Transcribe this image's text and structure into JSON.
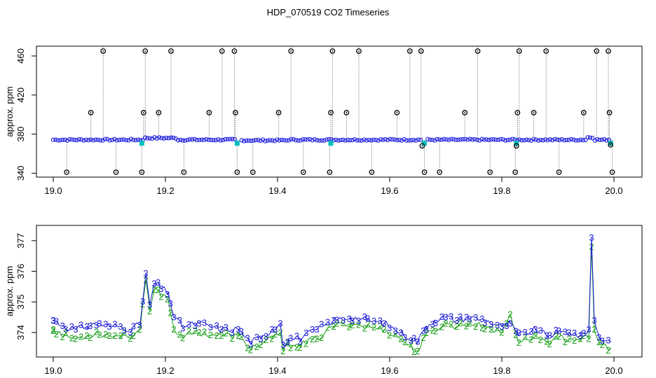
{
  "title": "HDP_070519  CO2 Timeseries",
  "chart_data": [
    {
      "type": "scatter",
      "ylabel": "approx. ppm",
      "xlabel": "",
      "xlim": [
        18.97,
        20.05
      ],
      "ylim": [
        336,
        470
      ],
      "x_ticks": [
        "19.0",
        "19.2",
        "19.4",
        "19.6",
        "19.8",
        "20.0"
      ],
      "y_ticks": [
        "340",
        "380",
        "420",
        "460"
      ],
      "baseline": 374.2,
      "series": [
        {
          "color": "#1010e0",
          "marker": "circle-dot",
          "note_baseline": "dense line near 374 ppm"
        },
        {
          "color": "#00bfbf",
          "marker": "square"
        },
        {
          "color": "#000000",
          "marker": "circle",
          "spikes": [
            {
              "x": 19.024,
              "y": 341
            },
            {
              "x": 19.067,
              "y": 402
            },
            {
              "x": 19.089,
              "y": 465
            },
            {
              "x": 19.112,
              "y": 341
            },
            {
              "x": 19.158,
              "y": 341
            },
            {
              "x": 19.161,
              "y": 402
            },
            {
              "x": 19.164,
              "y": 465
            },
            {
              "x": 19.188,
              "y": 402
            },
            {
              "x": 19.21,
              "y": 465
            },
            {
              "x": 19.233,
              "y": 341
            },
            {
              "x": 19.278,
              "y": 402
            },
            {
              "x": 19.301,
              "y": 465
            },
            {
              "x": 19.323,
              "y": 465
            },
            {
              "x": 19.325,
              "y": 402
            },
            {
              "x": 19.328,
              "y": 341
            },
            {
              "x": 19.356,
              "y": 341
            },
            {
              "x": 19.402,
              "y": 402
            },
            {
              "x": 19.424,
              "y": 465
            },
            {
              "x": 19.446,
              "y": 341
            },
            {
              "x": 19.493,
              "y": 341
            },
            {
              "x": 19.495,
              "y": 402
            },
            {
              "x": 19.498,
              "y": 465
            },
            {
              "x": 19.523,
              "y": 402
            },
            {
              "x": 19.545,
              "y": 465
            },
            {
              "x": 19.568,
              "y": 341
            },
            {
              "x": 19.613,
              "y": 402
            },
            {
              "x": 19.636,
              "y": 465
            },
            {
              "x": 19.656,
              "y": 465
            },
            {
              "x": 19.658,
              "y": 368
            },
            {
              "x": 19.662,
              "y": 341
            },
            {
              "x": 19.689,
              "y": 341
            },
            {
              "x": 19.734,
              "y": 402
            },
            {
              "x": 19.757,
              "y": 465
            },
            {
              "x": 19.779,
              "y": 341
            },
            {
              "x": 19.824,
              "y": 341
            },
            {
              "x": 19.826,
              "y": 368
            },
            {
              "x": 19.828,
              "y": 402
            },
            {
              "x": 19.831,
              "y": 465
            },
            {
              "x": 19.857,
              "y": 402
            },
            {
              "x": 19.879,
              "y": 465
            },
            {
              "x": 19.902,
              "y": 341
            },
            {
              "x": 19.946,
              "y": 402
            },
            {
              "x": 19.969,
              "y": 465
            },
            {
              "x": 19.99,
              "y": 465
            },
            {
              "x": 19.992,
              "y": 402
            },
            {
              "x": 19.994,
              "y": 369
            },
            {
              "x": 19.997,
              "y": 341
            }
          ]
        }
      ]
    },
    {
      "type": "line",
      "ylabel": "approx. ppm",
      "xlabel": "",
      "xlim": [
        18.97,
        20.05
      ],
      "ylim": [
        373.2,
        377.5
      ],
      "x_ticks": [
        "19.0",
        "19.2",
        "19.4",
        "19.6",
        "19.8",
        "20.0"
      ],
      "y_ticks": [
        "374",
        "375",
        "376",
        "377"
      ],
      "series": [
        {
          "marker": "3",
          "color": "#1a1ad6",
          "x": [
            19.0,
            19.02,
            19.04,
            19.06,
            19.08,
            19.1,
            19.12,
            19.14,
            19.155,
            19.165,
            19.172,
            19.18,
            19.19,
            19.205,
            19.215,
            19.23,
            19.26,
            19.3,
            19.33,
            19.35,
            19.37,
            19.39,
            19.405,
            19.41,
            19.42,
            19.44,
            19.47,
            19.5,
            19.53,
            19.56,
            19.59,
            19.62,
            19.64,
            19.65,
            19.665,
            19.68,
            19.7,
            19.72,
            19.74,
            19.77,
            19.8,
            19.815,
            19.83,
            19.86,
            19.88,
            19.9,
            19.92,
            19.94,
            19.955,
            19.96,
            19.965,
            19.975,
            19.995
          ],
          "y": [
            374.4,
            374.2,
            374.1,
            374.2,
            374.3,
            374.2,
            374.2,
            374.1,
            374.3,
            375.9,
            374.9,
            375.6,
            375.5,
            375.3,
            374.5,
            374.2,
            374.3,
            374.1,
            374.1,
            373.7,
            373.8,
            374.1,
            374.3,
            373.6,
            373.8,
            373.8,
            374.1,
            374.4,
            374.5,
            374.4,
            374.3,
            374.0,
            373.8,
            373.7,
            374.2,
            374.4,
            374.5,
            374.4,
            374.5,
            374.4,
            374.2,
            374.3,
            373.9,
            374.1,
            373.9,
            374.0,
            374.0,
            373.9,
            374.1,
            377.1,
            374.4,
            373.8,
            373.7
          ]
        },
        {
          "marker": "2",
          "color": "#1aa01a",
          "x": [
            19.0,
            19.02,
            19.04,
            19.06,
            19.08,
            19.1,
            19.12,
            19.14,
            19.155,
            19.165,
            19.172,
            19.18,
            19.19,
            19.205,
            19.215,
            19.23,
            19.26,
            19.3,
            19.33,
            19.35,
            19.37,
            19.39,
            19.405,
            19.41,
            19.42,
            19.44,
            19.47,
            19.5,
            19.53,
            19.56,
            19.59,
            19.62,
            19.64,
            19.65,
            19.665,
            19.68,
            19.7,
            19.72,
            19.74,
            19.77,
            19.8,
            19.815,
            19.83,
            19.86,
            19.88,
            19.9,
            19.92,
            19.94,
            19.955,
            19.96,
            19.965,
            19.975,
            19.995
          ],
          "y": [
            374.1,
            373.9,
            373.8,
            373.9,
            374.0,
            373.9,
            373.9,
            373.9,
            374.1,
            375.7,
            374.7,
            375.4,
            375.3,
            375.1,
            374.1,
            373.9,
            374.0,
            373.9,
            373.9,
            373.5,
            373.6,
            373.8,
            374.0,
            373.4,
            373.6,
            373.6,
            373.8,
            374.2,
            374.3,
            374.2,
            374.1,
            373.8,
            373.5,
            373.4,
            373.9,
            374.1,
            374.3,
            374.2,
            374.3,
            374.2,
            374.0,
            374.6,
            373.7,
            373.9,
            373.7,
            373.8,
            373.8,
            373.8,
            373.8,
            376.8,
            374.1,
            373.6,
            373.5
          ]
        }
      ]
    }
  ]
}
